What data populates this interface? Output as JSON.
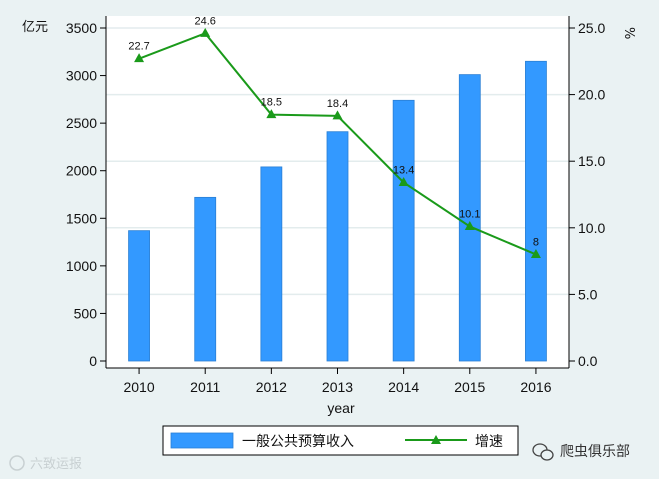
{
  "chart_data": {
    "type": "bar",
    "categories": [
      "2010",
      "2011",
      "2012",
      "2013",
      "2014",
      "2015",
      "2016"
    ],
    "series": [
      {
        "name": "一般公共预算收入",
        "kind": "bar",
        "axis": "left",
        "color": "#3399ff",
        "values": [
          1370,
          1720,
          2040,
          2410,
          2740,
          3010,
          3150
        ]
      },
      {
        "name": "增速",
        "kind": "line",
        "axis": "right",
        "color": "#1a9a1a",
        "marker": "triangle",
        "values": [
          22.7,
          24.6,
          18.5,
          18.4,
          13.4,
          10.1,
          8
        ]
      }
    ],
    "data_labels": [
      "22.7",
      "24.6",
      "18.5",
      "18.4",
      "13.4",
      "10.1",
      "8"
    ],
    "xlabel": "year",
    "y_left_unit": "亿元",
    "y_right_unit": "%",
    "y_left_range": [
      0,
      3600
    ],
    "y_right_range": [
      0,
      25.7
    ],
    "y_left_ticks": [
      "0",
      "500",
      "1000",
      "1500",
      "2000",
      "2500",
      "3000",
      "3500"
    ],
    "y_right_ticks": [
      "0.0",
      "5.0",
      "10.0",
      "15.0",
      "20.0",
      "25.0"
    ],
    "legend_position": "bottom",
    "grid": true
  },
  "watermark": {
    "left": "六致运报",
    "right": "爬虫俱乐部"
  },
  "colors": {
    "background": "#eaf2f3",
    "plot_background": "#ffffff",
    "bar": "#3399ff",
    "line": "#1a9a1a"
  }
}
